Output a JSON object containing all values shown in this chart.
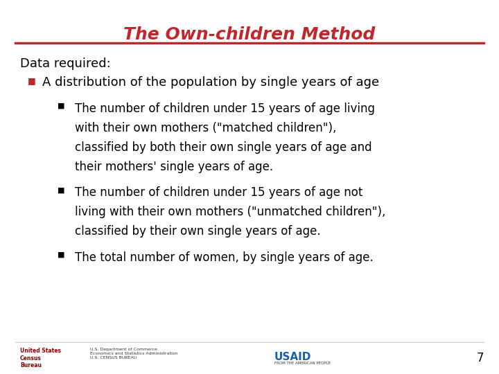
{
  "title": "The Own-children Method",
  "title_color": "#C0272D",
  "title_underline_color": "#C0272D",
  "bg_color": "#FFFFFF",
  "text_color": "#000000",
  "bullet_color": "#C0272D",
  "slide_number": "7",
  "data_required_label": "Data required:",
  "level1_bullet": "A distribution of the population by single years of age",
  "level2_bullets": [
    "The number of children under 15 years of age living with their own mothers (\"matched children\"), classified by both their own single years of age and their mothers' single years of age.",
    "The number of children under 15 years of age not living with their own mothers (\"unmatched children\"), classified by their own single years of age.",
    "The total number of women, by single years of age."
  ],
  "font_family": "DejaVu Sans",
  "title_fontsize": 18,
  "label_fontsize": 13,
  "bullet1_fontsize": 13,
  "bullet2_fontsize": 12
}
